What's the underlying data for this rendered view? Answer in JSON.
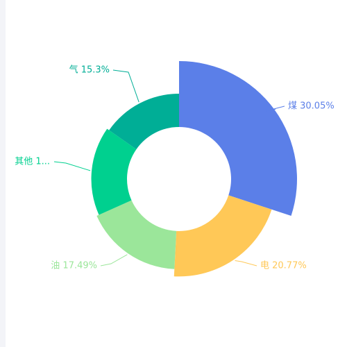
{
  "chart_data": {
    "type": "pie",
    "variant": "rose-donut",
    "slices": [
      {
        "name": "煤",
        "value": 30.05,
        "label": "煤 30.05%",
        "color": "#5B7FE8"
      },
      {
        "name": "电",
        "value": 20.77,
        "label": "电 20.77%",
        "color": "#FFC857"
      },
      {
        "name": "油",
        "value": 17.49,
        "label": "油 17.49%",
        "color": "#9BE69A"
      },
      {
        "name": "其他",
        "value": 16.39,
        "label": "其他 1...",
        "color": "#00D08F"
      },
      {
        "name": "气",
        "value": 15.3,
        "label": "气 15.3%",
        "color": "#00AE96"
      }
    ],
    "title": "",
    "legend": "none"
  }
}
